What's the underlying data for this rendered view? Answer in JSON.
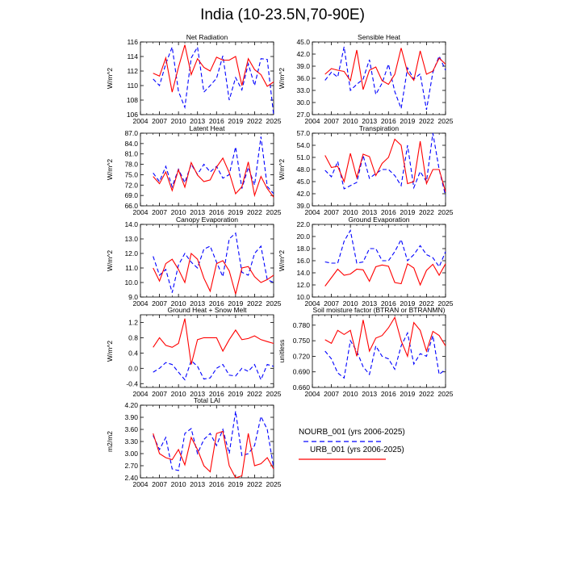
{
  "figure": {
    "title": "India (10-23.5N,70-90E)"
  },
  "legend": {
    "entries": [
      {
        "label": "NOURB_001 (yrs 2006-2025)",
        "color": "#0000ff",
        "dash": "dashed"
      },
      {
        "label": "URB_001 (yrs 2006-2025)",
        "color": "#ff0000",
        "dash": "solid"
      }
    ]
  },
  "chart_data": [
    {
      "type": "line",
      "title": "Net Radiation",
      "ylabel": "W/m^2",
      "xlim": [
        2004,
        2025
      ],
      "xticks": [
        2004,
        2007,
        2010,
        2013,
        2016,
        2019,
        2022,
        2025
      ],
      "ylim": [
        106,
        116
      ],
      "yticks": [
        "106",
        "108",
        "110",
        "112",
        "114",
        "116"
      ],
      "x": [
        2006,
        2007,
        2008,
        2009,
        2010,
        2011,
        2012,
        2013,
        2014,
        2015,
        2016,
        2017,
        2018,
        2019,
        2020,
        2021,
        2022,
        2023,
        2024,
        2025
      ],
      "series": [
        {
          "name": "NOURB_001 (yrs 2006-2025)",
          "values": [
            110.9,
            110.0,
            113.0,
            115.3,
            109.2,
            107.0,
            113.8,
            115.3,
            109.1,
            110.0,
            111.0,
            114.1,
            108.0,
            111.1,
            109.4,
            113.0,
            110.0,
            113.7,
            113.6,
            106.0
          ]
        },
        {
          "name": "URB_001 (yrs 2006-2025)",
          "values": [
            111.7,
            111.3,
            113.8,
            109.1,
            112.5,
            115.6,
            111.5,
            113.7,
            112.5,
            112.0,
            113.9,
            113.5,
            113.5,
            114.0,
            110.0,
            113.7,
            112.2,
            111.5,
            109.9,
            110.5
          ]
        }
      ]
    },
    {
      "type": "line",
      "title": "Sensible Heat",
      "ylabel": "W/m^2",
      "xlim": [
        2004,
        2025
      ],
      "xticks": [
        2004,
        2007,
        2010,
        2013,
        2016,
        2019,
        2022,
        2025
      ],
      "ylim": [
        27.0,
        45.0
      ],
      "yticks": [
        "27.0",
        "30.0",
        "33.0",
        "36.0",
        "39.0",
        "42.0",
        "45.0"
      ],
      "x": [
        2006,
        2007,
        2008,
        2009,
        2010,
        2011,
        2012,
        2013,
        2014,
        2015,
        2016,
        2017,
        2018,
        2019,
        2020,
        2021,
        2022,
        2023,
        2024,
        2025
      ],
      "series": [
        {
          "name": "NOURB_001 (yrs 2006-2025)",
          "values": [
            35.5,
            37.5,
            36.3,
            43.8,
            33.0,
            34.5,
            35.8,
            40.6,
            32.0,
            34.8,
            39.5,
            32.7,
            28.5,
            38.6,
            35.8,
            37.1,
            28.2,
            37.5,
            41.5,
            38.0
          ]
        },
        {
          "name": "URB_001 (yrs 2006-2025)",
          "values": [
            37.0,
            38.4,
            38.0,
            37.7,
            35.4,
            43.0,
            33.2,
            38.0,
            38.8,
            35.4,
            34.5,
            37.0,
            43.5,
            37.5,
            35.5,
            42.8,
            37.0,
            37.8,
            41.0,
            39.5
          ]
        }
      ]
    },
    {
      "type": "line",
      "title": "Latent Heat",
      "ylabel": "W/m^2",
      "xlim": [
        2004,
        2025
      ],
      "xticks": [
        2004,
        2007,
        2010,
        2013,
        2016,
        2019,
        2022,
        2025
      ],
      "ylim": [
        66.0,
        87.0
      ],
      "yticks": [
        "66.0",
        "69.0",
        "72.0",
        "75.0",
        "78.0",
        "81.0",
        "84.0",
        "87.0"
      ],
      "x": [
        2006,
        2007,
        2008,
        2009,
        2010,
        2011,
        2012,
        2013,
        2014,
        2015,
        2016,
        2017,
        2018,
        2019,
        2020,
        2021,
        2022,
        2023,
        2024,
        2025
      ],
      "series": [
        {
          "name": "NOURB_001 (yrs 2006-2025)",
          "values": [
            75.5,
            73.0,
            77.4,
            71.5,
            76.6,
            72.7,
            78.0,
            75.1,
            78.0,
            75.8,
            77.4,
            74.0,
            75.0,
            83.0,
            71.0,
            77.1,
            72.0,
            86.0,
            71.6,
            69.5
          ]
        },
        {
          "name": "URB_001 (yrs 2006-2025)",
          "values": [
            74.5,
            72.4,
            75.8,
            70.4,
            76.4,
            71.4,
            78.5,
            74.9,
            73.0,
            73.5,
            77.2,
            79.8,
            75.6,
            69.5,
            71.5,
            78.7,
            69.0,
            74.5,
            71.0,
            68.5
          ]
        }
      ]
    },
    {
      "type": "line",
      "title": "Transpiration",
      "ylabel": "W/m^2",
      "xlim": [
        2004,
        2025
      ],
      "xticks": [
        2004,
        2007,
        2010,
        2013,
        2016,
        2019,
        2022,
        2025
      ],
      "ylim": [
        39.0,
        57.0
      ],
      "yticks": [
        "39.0",
        "42.0",
        "45.0",
        "48.0",
        "51.0",
        "54.0",
        "57.0"
      ],
      "x": [
        2006,
        2007,
        2008,
        2009,
        2010,
        2011,
        2012,
        2013,
        2014,
        2015,
        2016,
        2017,
        2018,
        2019,
        2020,
        2021,
        2022,
        2023,
        2024,
        2025
      ],
      "series": [
        {
          "name": "NOURB_001 (yrs 2006-2025)",
          "values": [
            47.8,
            46.2,
            50.0,
            43.2,
            44.0,
            44.8,
            51.5,
            45.8,
            47.0,
            48.0,
            48.0,
            46.5,
            44.0,
            54.0,
            43.5,
            47.5,
            45.0,
            57.0,
            48.0,
            41.5
          ]
        },
        {
          "name": "URB_001 (yrs 2006-2025)",
          "values": [
            51.5,
            48.5,
            48.8,
            45.0,
            52.0,
            46.0,
            51.8,
            51.2,
            46.5,
            49.5,
            51.0,
            55.5,
            54.0,
            44.5,
            45.0,
            55.0,
            44.5,
            48.0,
            48.0,
            42.5
          ]
        }
      ]
    },
    {
      "type": "line",
      "title": "Canopy Evaporation",
      "ylabel": "W/m^2",
      "xlim": [
        2004,
        2025
      ],
      "xticks": [
        2004,
        2007,
        2010,
        2013,
        2016,
        2019,
        2022,
        2025
      ],
      "ylim": [
        9.0,
        14.0
      ],
      "yticks": [
        "9.0",
        "10.0",
        "11.0",
        "12.0",
        "13.0",
        "14.0"
      ],
      "x": [
        2006,
        2007,
        2008,
        2009,
        2010,
        2011,
        2012,
        2013,
        2014,
        2015,
        2016,
        2017,
        2018,
        2019,
        2020,
        2021,
        2022,
        2023,
        2024,
        2025
      ],
      "series": [
        {
          "name": "NOURB_001 (yrs 2006-2025)",
          "values": [
            11.8,
            10.5,
            10.9,
            9.3,
            11.2,
            12.0,
            11.4,
            11.0,
            12.3,
            12.5,
            11.4,
            10.4,
            13.0,
            13.4,
            10.7,
            10.5,
            12.0,
            12.5,
            10.2,
            10.0
          ]
        },
        {
          "name": "URB_001 (yrs 2006-2025)",
          "values": [
            11.0,
            10.1,
            11.3,
            11.6,
            10.9,
            10.0,
            12.0,
            11.6,
            10.3,
            9.4,
            11.3,
            11.5,
            10.8,
            9.2,
            11.0,
            11.1,
            10.4,
            10.0,
            10.2,
            10.5
          ]
        }
      ]
    },
    {
      "type": "line",
      "title": "Ground Evaporation",
      "ylabel": "W/m^2",
      "xlim": [
        2004,
        2025
      ],
      "xticks": [
        2004,
        2007,
        2010,
        2013,
        2016,
        2019,
        2022,
        2025
      ],
      "ylim": [
        10.0,
        22.0
      ],
      "yticks": [
        "10.0",
        "12.0",
        "14.0",
        "16.0",
        "18.0",
        "20.0",
        "22.0"
      ],
      "x": [
        2006,
        2007,
        2008,
        2009,
        2010,
        2011,
        2012,
        2013,
        2014,
        2015,
        2016,
        2017,
        2018,
        2019,
        2020,
        2021,
        2022,
        2023,
        2024,
        2025
      ],
      "series": [
        {
          "name": "NOURB_001 (yrs 2006-2025)",
          "values": [
            15.8,
            15.6,
            15.6,
            19.2,
            21.0,
            15.6,
            15.8,
            18.0,
            18.0,
            16.0,
            16.0,
            17.5,
            19.5,
            16.0,
            17.0,
            18.5,
            17.0,
            16.5,
            15.0,
            17.5
          ]
        },
        {
          "name": "URB_001 (yrs 2006-2025)",
          "values": [
            11.8,
            13.2,
            14.6,
            13.6,
            13.8,
            14.6,
            14.5,
            12.6,
            15.0,
            15.3,
            15.1,
            12.4,
            12.2,
            15.5,
            14.8,
            12.0,
            14.4,
            15.4,
            13.6,
            15.5
          ]
        }
      ]
    },
    {
      "type": "line",
      "title": "Ground Heat + Snow Melt",
      "ylabel": "W/m^2",
      "xlim": [
        2004,
        2025
      ],
      "xticks": [
        2004,
        2007,
        2010,
        2013,
        2016,
        2019,
        2022,
        2025
      ],
      "ylim": [
        -0.5,
        1.4
      ],
      "yticks": [
        "-0.4",
        "0.0",
        "0.4",
        "0.8",
        "1.2"
      ],
      "x": [
        2006,
        2007,
        2008,
        2009,
        2010,
        2011,
        2012,
        2013,
        2014,
        2015,
        2016,
        2017,
        2018,
        2019,
        2020,
        2021,
        2022,
        2023,
        2024,
        2025
      ],
      "series": [
        {
          "name": "NOURB_001 (yrs 2006-2025)",
          "values": [
            -0.1,
            0.0,
            0.15,
            0.1,
            -0.1,
            -0.3,
            0.2,
            0.05,
            -0.28,
            -0.25,
            0.0,
            0.1,
            -0.18,
            -0.2,
            0.0,
            -0.08,
            0.1,
            -0.3,
            0.1,
            0.05
          ]
        },
        {
          "name": "URB_001 (yrs 2006-2025)",
          "values": [
            0.55,
            0.8,
            0.6,
            0.55,
            0.65,
            1.3,
            0.1,
            0.75,
            0.8,
            0.8,
            0.8,
            0.45,
            0.75,
            1.0,
            0.75,
            0.78,
            0.85,
            0.75,
            0.7,
            0.65
          ]
        }
      ]
    },
    {
      "type": "line",
      "title": "Soil moisture factor (BTRAN or BTRANMN)",
      "ylabel": "unitless",
      "xlim": [
        2004,
        2025
      ],
      "xticks": [
        2004,
        2007,
        2010,
        2013,
        2016,
        2019,
        2022,
        2025
      ],
      "ylim": [
        0.66,
        0.8
      ],
      "yticks": [
        "0.660",
        "0.690",
        "0.720",
        "0.750",
        "0.780"
      ],
      "x": [
        2006,
        2007,
        2008,
        2009,
        2010,
        2011,
        2012,
        2013,
        2014,
        2015,
        2016,
        2017,
        2018,
        2019,
        2020,
        2021,
        2022,
        2023,
        2024,
        2025
      ],
      "series": [
        {
          "name": "NOURB_001 (yrs 2006-2025)",
          "values": [
            0.73,
            0.715,
            0.688,
            0.678,
            0.75,
            0.73,
            0.7,
            0.685,
            0.74,
            0.72,
            0.715,
            0.695,
            0.74,
            0.765,
            0.705,
            0.725,
            0.72,
            0.76,
            0.685,
            0.695
          ]
        },
        {
          "name": "URB_001 (yrs 2006-2025)",
          "values": [
            0.752,
            0.745,
            0.77,
            0.762,
            0.77,
            0.72,
            0.79,
            0.73,
            0.755,
            0.76,
            0.775,
            0.795,
            0.75,
            0.72,
            0.785,
            0.77,
            0.73,
            0.768,
            0.76,
            0.74
          ]
        }
      ]
    },
    {
      "type": "line",
      "title": "Total LAI",
      "ylabel": "m2/m2",
      "xlim": [
        2004,
        2025
      ],
      "xticks": [
        2004,
        2007,
        2010,
        2013,
        2016,
        2019,
        2022,
        2025
      ],
      "ylim": [
        2.4,
        4.2
      ],
      "yticks": [
        "2.40",
        "2.70",
        "3.00",
        "3.30",
        "3.60",
        "3.90",
        "4.20"
      ],
      "x": [
        2006,
        2007,
        2008,
        2009,
        2010,
        2011,
        2012,
        2013,
        2014,
        2015,
        2016,
        2017,
        2018,
        2019,
        2020,
        2021,
        2022,
        2023,
        2024,
        2025
      ],
      "series": [
        {
          "name": "NOURB_001 (yrs 2006-2025)",
          "values": [
            3.45,
            3.1,
            3.4,
            2.62,
            2.58,
            3.5,
            3.62,
            3.0,
            3.35,
            3.5,
            3.2,
            3.6,
            3.0,
            4.05,
            2.95,
            3.0,
            3.2,
            3.92,
            3.6,
            2.65
          ]
        },
        {
          "name": "URB_001 (yrs 2006-2025)",
          "values": [
            3.5,
            3.0,
            2.9,
            2.85,
            3.1,
            2.72,
            3.4,
            3.1,
            2.7,
            2.55,
            3.5,
            3.55,
            2.7,
            2.4,
            2.45,
            3.5,
            2.7,
            2.75,
            2.9,
            2.62
          ]
        }
      ]
    }
  ]
}
